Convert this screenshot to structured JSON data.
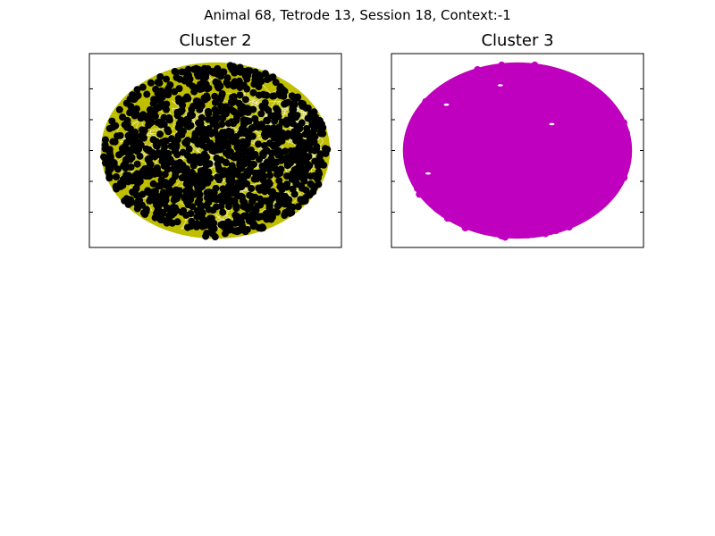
{
  "figure": {
    "suptitle": "Animal 68, Tetrode 13, Session 18, Context:-1"
  },
  "chart_data": [
    {
      "type": "scatter",
      "title": "Cluster 2",
      "xlabel": "",
      "ylabel": "",
      "tick_labels_visible": false,
      "xlim": [
        -1.1,
        1.1
      ],
      "ylim": [
        -1.1,
        1.1
      ],
      "grid": false,
      "legend": "none",
      "arena_shape": "ellipse",
      "trajectory_color": "#bfbf00",
      "spike_color": "#000000",
      "y_ticks": [
        -0.7,
        -0.35,
        0.0,
        0.35,
        0.7
      ]
    },
    {
      "type": "scatter",
      "title": "Cluster 3",
      "xlabel": "",
      "ylabel": "",
      "tick_labels_visible": false,
      "xlim": [
        -1.1,
        1.1
      ],
      "ylim": [
        -1.1,
        1.1
      ],
      "grid": false,
      "legend": "none",
      "arena_shape": "ellipse",
      "trajectory_color": "#bfbf00",
      "spike_color": "#bf00bf",
      "y_ticks": [
        -0.7,
        -0.35,
        0.0,
        0.35,
        0.7
      ]
    }
  ]
}
